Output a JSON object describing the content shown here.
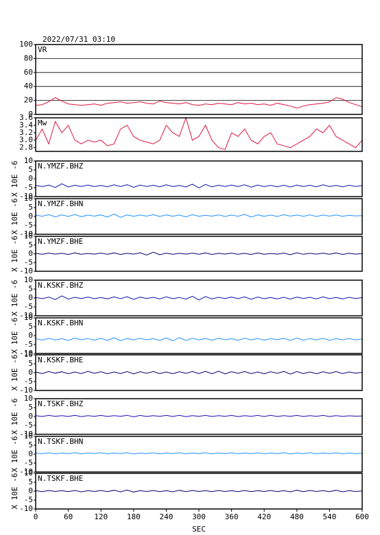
{
  "header": {
    "timestamp": "2022/07/31 03:10"
  },
  "chart_data": [
    {
      "type": "line",
      "label": "VR",
      "color": "#dc143c",
      "xlim": [
        0,
        600
      ],
      "ylim": [
        0,
        100
      ],
      "yticks": [
        0,
        20,
        40,
        60,
        80,
        100
      ],
      "grid": true,
      "x": [
        0,
        12,
        24,
        36,
        48,
        60,
        72,
        84,
        96,
        108,
        120,
        132,
        144,
        156,
        168,
        180,
        192,
        204,
        216,
        228,
        240,
        252,
        264,
        276,
        288,
        300,
        312,
        324,
        336,
        348,
        360,
        372,
        384,
        396,
        408,
        420,
        432,
        444,
        456,
        468,
        480,
        492,
        504,
        516,
        528,
        540,
        552,
        564,
        576,
        588,
        600
      ],
      "values": [
        13,
        14,
        18,
        24,
        19,
        15,
        14,
        13,
        14,
        15,
        13,
        16,
        17,
        18,
        16,
        17,
        18,
        16,
        15,
        19,
        17,
        16,
        15,
        17,
        14,
        13,
        15,
        14,
        16,
        15,
        14,
        17,
        15,
        16,
        14,
        15,
        13,
        16,
        14,
        12,
        9,
        12,
        14,
        15,
        16,
        18,
        24,
        22,
        17,
        14,
        11
      ]
    },
    {
      "type": "line",
      "label": "Mw",
      "color": "#dc143c",
      "xlim": [
        0,
        600
      ],
      "ylim": [
        2.7,
        3.6
      ],
      "yticks": [
        2.8,
        {
          "value": 3,
          "label": "3.0"
        },
        3.2,
        3.4,
        3.6
      ],
      "grid": false,
      "x": [
        0,
        12,
        24,
        36,
        48,
        60,
        72,
        84,
        96,
        108,
        120,
        132,
        144,
        156,
        168,
        180,
        192,
        204,
        216,
        228,
        240,
        252,
        264,
        276,
        288,
        300,
        312,
        324,
        336,
        348,
        360,
        372,
        384,
        396,
        408,
        420,
        432,
        444,
        456,
        468,
        480,
        492,
        504,
        516,
        528,
        540,
        552,
        564,
        576,
        588,
        600
      ],
      "values": [
        3.0,
        3.3,
        2.9,
        3.5,
        3.2,
        3.4,
        3.0,
        2.9,
        3.0,
        2.95,
        3.0,
        2.85,
        2.9,
        3.3,
        3.4,
        3.1,
        3.0,
        2.95,
        2.9,
        3.0,
        3.4,
        3.2,
        3.1,
        3.6,
        3.0,
        3.1,
        3.4,
        3.0,
        2.8,
        2.75,
        3.2,
        3.1,
        3.3,
        3.0,
        2.9,
        3.1,
        3.2,
        2.9,
        2.85,
        2.8,
        2.9,
        3.0,
        3.1,
        3.3,
        3.2,
        3.4,
        3.1,
        3.0,
        2.9,
        2.8,
        3.0
      ]
    },
    {
      "type": "line",
      "label": "N.YMZF.BHZ",
      "ylabel": "X 10E -6",
      "color": "#1010b0",
      "xlim": [
        0,
        600
      ],
      "ylim": [
        -10,
        10
      ],
      "yticks": [
        -10,
        -5,
        0,
        5,
        10
      ],
      "grid": false,
      "x": [
        0,
        12,
        24,
        36,
        48,
        60,
        72,
        84,
        96,
        108,
        120,
        132,
        144,
        156,
        168,
        180,
        192,
        204,
        216,
        228,
        240,
        252,
        264,
        276,
        288,
        300,
        312,
        324,
        336,
        348,
        360,
        372,
        384,
        396,
        408,
        420,
        432,
        444,
        456,
        468,
        480,
        492,
        504,
        516,
        528,
        540,
        552,
        564,
        576,
        588,
        600
      ],
      "values": [
        -3.7,
        -4.4,
        -3.5,
        -4.9,
        -2.8,
        -4.6,
        -3.6,
        -4.3,
        -3.5,
        -4.4,
        -3.7,
        -4.5,
        -3.4,
        -4.4,
        -3.3,
        -4.8,
        -3.5,
        -4.3,
        -3.6,
        -4.5,
        -3.4,
        -4.4,
        -3.7,
        -4.6,
        -3.0,
        -5.1,
        -3.2,
        -4.5,
        -3.6,
        -4.3,
        -3.5,
        -4.4,
        -3.4,
        -4.7,
        -3.5,
        -4.4,
        -3.7,
        -4.5,
        -3.6,
        -4.6,
        -3.5,
        -4.3,
        -3.6,
        -4.5,
        -3.4,
        -4.4,
        -3.7,
        -4.5,
        -3.6,
        -4.3,
        -3.8
      ]
    },
    {
      "type": "line",
      "label": "N.YMZF.BHN",
      "ylabel": "X 10E -6",
      "color": "#1e90ff",
      "xlim": [
        0,
        600
      ],
      "ylim": [
        -10,
        10
      ],
      "yticks": [
        -10,
        -5,
        0,
        5,
        10
      ],
      "grid": false,
      "x": [
        0,
        12,
        24,
        36,
        48,
        60,
        72,
        84,
        96,
        108,
        120,
        132,
        144,
        156,
        168,
        180,
        192,
        204,
        216,
        228,
        240,
        252,
        264,
        276,
        288,
        300,
        312,
        324,
        336,
        348,
        360,
        372,
        384,
        396,
        408,
        420,
        432,
        444,
        456,
        468,
        480,
        492,
        504,
        516,
        528,
        540,
        552,
        564,
        576,
        588,
        600
      ],
      "values": [
        0.8,
        0.1,
        1.0,
        -0.2,
        0.9,
        0.0,
        1.1,
        -0.1,
        0.8,
        0.2,
        0.9,
        -0.3,
        1.4,
        -0.5,
        0.9,
        0.1,
        0.8,
        0.2,
        1.0,
        0.0,
        0.9,
        0.1,
        0.8,
        -0.2,
        1.0,
        0.1,
        0.7,
        0.2,
        0.9,
        0.0,
        0.8,
        0.1,
        1.2,
        -0.3,
        0.9,
        0.1,
        0.8,
        0.0,
        1.0,
        0.2,
        0.8,
        0.1,
        0.9,
        0.0,
        0.8,
        0.2,
        0.9,
        0.1,
        0.7,
        0.3,
        0.5
      ]
    },
    {
      "type": "line",
      "label": "N.YMZF.BHE",
      "ylabel": "X 10E -6",
      "color": "#000070",
      "xlim": [
        0,
        600
      ],
      "ylim": [
        -10,
        10
      ],
      "yticks": [
        -10,
        -5,
        0,
        5,
        10
      ],
      "grid": false,
      "x": [
        0,
        12,
        24,
        36,
        48,
        60,
        72,
        84,
        96,
        108,
        120,
        132,
        144,
        156,
        168,
        180,
        192,
        204,
        216,
        228,
        240,
        252,
        264,
        276,
        288,
        300,
        312,
        324,
        336,
        348,
        360,
        372,
        384,
        396,
        408,
        420,
        432,
        444,
        456,
        468,
        480,
        492,
        504,
        516,
        528,
        540,
        552,
        564,
        576,
        588,
        600
      ],
      "values": [
        0.3,
        -0.3,
        0.4,
        -0.2,
        0.3,
        -0.4,
        0.5,
        -0.3,
        0.2,
        -0.2,
        0.4,
        -0.3,
        0.5,
        -0.4,
        0.3,
        -0.2,
        0.6,
        -0.7,
        0.9,
        -0.5,
        0.4,
        -0.3,
        0.3,
        -0.2,
        0.4,
        -0.3,
        0.5,
        -0.4,
        0.3,
        -0.2,
        0.4,
        -0.3,
        0.3,
        -0.4,
        0.5,
        -0.3,
        0.2,
        -0.2,
        0.4,
        -0.5,
        0.6,
        -0.3,
        0.3,
        -0.2,
        0.4,
        -0.3,
        0.5,
        -0.4,
        0.3,
        -0.2,
        0.1
      ]
    },
    {
      "type": "line",
      "label": "N.KSKF.BHZ",
      "ylabel": "X 10E -6",
      "color": "#1010b0",
      "xlim": [
        0,
        600
      ],
      "ylim": [
        -10,
        10
      ],
      "yticks": [
        -10,
        -5,
        0,
        5,
        10
      ],
      "grid": false,
      "x": [
        0,
        12,
        24,
        36,
        48,
        60,
        72,
        84,
        96,
        108,
        120,
        132,
        144,
        156,
        168,
        180,
        192,
        204,
        216,
        228,
        240,
        252,
        264,
        276,
        288,
        300,
        312,
        324,
        336,
        348,
        360,
        372,
        384,
        396,
        408,
        420,
        432,
        444,
        456,
        468,
        480,
        492,
        504,
        516,
        528,
        540,
        552,
        564,
        576,
        588,
        600
      ],
      "values": [
        0.3,
        -0.4,
        0.5,
        -0.9,
        1.2,
        -0.6,
        0.4,
        -0.3,
        0.5,
        -0.4,
        0.3,
        -0.5,
        0.6,
        -0.4,
        0.7,
        -0.8,
        0.5,
        -0.3,
        0.4,
        -0.5,
        0.6,
        -0.4,
        0.3,
        -0.6,
        1.0,
        -1.1,
        0.8,
        -0.5,
        0.4,
        -0.3,
        0.5,
        -0.4,
        0.6,
        -0.7,
        0.5,
        -0.4,
        0.3,
        -0.5,
        0.4,
        -0.6,
        0.5,
        -0.3,
        0.4,
        -0.5,
        0.6,
        -0.4,
        0.3,
        -0.5,
        0.4,
        -0.3,
        0.2
      ]
    },
    {
      "type": "line",
      "label": "N.KSKF.BHN",
      "ylabel": "X 10E -6",
      "color": "#1e90ff",
      "xlim": [
        0,
        600
      ],
      "ylim": [
        -10,
        10
      ],
      "yticks": [
        -10,
        -5,
        0,
        5,
        10
      ],
      "grid": false,
      "x": [
        0,
        12,
        24,
        36,
        48,
        60,
        72,
        84,
        96,
        108,
        120,
        132,
        144,
        156,
        168,
        180,
        192,
        204,
        216,
        228,
        240,
        252,
        264,
        276,
        288,
        300,
        312,
        324,
        336,
        348,
        360,
        372,
        384,
        396,
        408,
        420,
        432,
        444,
        456,
        468,
        480,
        492,
        504,
        516,
        528,
        540,
        552,
        564,
        576,
        588,
        600
      ],
      "values": [
        -1.6,
        -2.5,
        -1.5,
        -2.4,
        -1.7,
        -2.6,
        -1.4,
        -2.3,
        -1.6,
        -2.5,
        -1.5,
        -2.7,
        -1.2,
        -2.8,
        -1.6,
        -2.4,
        -1.5,
        -2.3,
        -1.7,
        -2.6,
        -1.3,
        -2.9,
        -1.1,
        -2.7,
        -1.5,
        -2.4,
        -1.6,
        -2.5,
        -1.5,
        -2.3,
        -1.7,
        -2.6,
        -1.4,
        -2.4,
        -1.6,
        -2.5,
        -1.7,
        -2.3,
        -1.5,
        -2.6,
        -1.4,
        -2.5,
        -1.6,
        -2.4,
        -1.5,
        -2.6,
        -1.7,
        -2.3,
        -1.6,
        -2.4,
        -1.8
      ]
    },
    {
      "type": "line",
      "label": "N.KSKF.BHE",
      "ylabel": "X 10E -6",
      "color": "#000070",
      "xlim": [
        0,
        600
      ],
      "ylim": [
        -10,
        10
      ],
      "yticks": [
        -10,
        -5,
        0,
        5,
        10
      ],
      "grid": false,
      "x": [
        0,
        12,
        24,
        36,
        48,
        60,
        72,
        84,
        96,
        108,
        120,
        132,
        144,
        156,
        168,
        180,
        192,
        204,
        216,
        228,
        240,
        252,
        264,
        276,
        288,
        300,
        312,
        324,
        336,
        348,
        360,
        372,
        384,
        396,
        408,
        420,
        432,
        444,
        456,
        468,
        480,
        492,
        504,
        516,
        528,
        540,
        552,
        564,
        576,
        588,
        600
      ],
      "values": [
        0.4,
        -0.5,
        0.6,
        -0.3,
        0.5,
        -0.6,
        0.4,
        -0.5,
        0.7,
        -0.4,
        0.5,
        -0.6,
        0.4,
        -0.5,
        0.6,
        -0.7,
        0.5,
        -0.4,
        0.6,
        -0.5,
        0.4,
        -0.6,
        0.5,
        -0.4,
        0.6,
        -0.5,
        0.7,
        -0.6,
        0.8,
        -0.7,
        0.5,
        -0.4,
        0.6,
        -0.5,
        0.4,
        -0.6,
        0.5,
        -0.4,
        0.7,
        -0.8,
        0.6,
        -0.5,
        0.4,
        -0.6,
        0.5,
        -0.4,
        0.6,
        -0.5,
        0.4,
        -0.3,
        0.2
      ]
    },
    {
      "type": "line",
      "label": "N.TSKF.BHZ",
      "ylabel": "X 10E -6",
      "color": "#1010b0",
      "xlim": [
        0,
        600
      ],
      "ylim": [
        -10,
        10
      ],
      "yticks": [
        -10,
        -5,
        0,
        5,
        10
      ],
      "grid": false,
      "x": [
        0,
        12,
        24,
        36,
        48,
        60,
        72,
        84,
        96,
        108,
        120,
        132,
        144,
        156,
        168,
        180,
        192,
        204,
        216,
        228,
        240,
        252,
        264,
        276,
        288,
        300,
        312,
        324,
        336,
        348,
        360,
        372,
        384,
        396,
        408,
        420,
        432,
        444,
        456,
        468,
        480,
        492,
        504,
        516,
        528,
        540,
        552,
        564,
        576,
        588,
        600
      ],
      "values": [
        0.5,
        0.0,
        0.6,
        0.1,
        0.5,
        0.0,
        0.7,
        -0.1,
        0.5,
        0.1,
        0.6,
        0.0,
        0.5,
        0.1,
        0.7,
        -0.2,
        0.6,
        0.0,
        0.5,
        0.1,
        0.6,
        0.0,
        0.7,
        -0.1,
        0.5,
        0.1,
        0.6,
        0.0,
        0.5,
        0.1,
        0.6,
        -0.1,
        0.5,
        0.1,
        0.6,
        0.0,
        0.7,
        0.0,
        0.5,
        0.1,
        0.6,
        0.0,
        0.5,
        0.1,
        0.6,
        0.0,
        0.5,
        0.1,
        0.4,
        0.2,
        0.3
      ]
    },
    {
      "type": "line",
      "label": "N.TSKF.BHN",
      "ylabel": "X 10E -6",
      "color": "#1e90ff",
      "xlim": [
        0,
        600
      ],
      "ylim": [
        -10,
        10
      ],
      "yticks": [
        -10,
        -5,
        0,
        5,
        10
      ],
      "grid": false,
      "x": [
        0,
        12,
        24,
        36,
        48,
        60,
        72,
        84,
        96,
        108,
        120,
        132,
        144,
        156,
        168,
        180,
        192,
        204,
        216,
        228,
        240,
        252,
        264,
        276,
        288,
        300,
        312,
        324,
        336,
        348,
        360,
        372,
        384,
        396,
        408,
        420,
        432,
        444,
        456,
        468,
        480,
        492,
        504,
        516,
        528,
        540,
        552,
        564,
        576,
        588,
        600
      ],
      "values": [
        0.7,
        0.3,
        0.8,
        0.2,
        0.7,
        0.3,
        0.8,
        0.2,
        0.7,
        0.4,
        0.8,
        0.2,
        0.7,
        0.3,
        0.9,
        0.1,
        0.7,
        0.3,
        0.8,
        0.2,
        0.7,
        0.3,
        0.8,
        0.2,
        0.7,
        0.3,
        0.8,
        0.2,
        0.7,
        0.3,
        0.8,
        0.2,
        0.7,
        0.3,
        0.8,
        0.2,
        0.7,
        0.3,
        0.9,
        0.1,
        0.7,
        0.3,
        0.8,
        0.2,
        0.7,
        0.3,
        0.8,
        0.2,
        0.7,
        0.3,
        0.5
      ]
    },
    {
      "type": "line",
      "label": "N.TSKF.BHE",
      "ylabel": "X 10E -6",
      "color": "#000070",
      "xlim": [
        0,
        600
      ],
      "ylim": [
        -10,
        10
      ],
      "yticks": [
        -10,
        -5,
        0,
        5,
        10
      ],
      "grid": false,
      "xticks": [
        0,
        60,
        120,
        180,
        240,
        300,
        360,
        420,
        480,
        540,
        600
      ],
      "xlabel": "SEC",
      "x": [
        0,
        12,
        24,
        36,
        48,
        60,
        72,
        84,
        96,
        108,
        120,
        132,
        144,
        156,
        168,
        180,
        192,
        204,
        216,
        228,
        240,
        252,
        264,
        276,
        288,
        300,
        312,
        324,
        336,
        348,
        360,
        372,
        384,
        396,
        408,
        420,
        432,
        444,
        456,
        468,
        480,
        492,
        504,
        516,
        528,
        540,
        552,
        564,
        576,
        588,
        600
      ],
      "values": [
        0.3,
        -0.3,
        0.4,
        -0.2,
        0.3,
        -0.3,
        0.4,
        -0.4,
        0.3,
        -0.2,
        0.4,
        -0.3,
        0.5,
        -0.4,
        0.6,
        -0.5,
        0.3,
        -0.2,
        0.4,
        -0.3,
        0.3,
        -0.4,
        0.5,
        -0.3,
        0.4,
        -0.2,
        0.3,
        -0.3,
        0.4,
        -0.2,
        0.3,
        -0.3,
        0.4,
        -0.3,
        0.3,
        -0.2,
        0.4,
        -0.3,
        0.3,
        -0.4,
        0.5,
        -0.3,
        0.4,
        -0.2,
        0.3,
        -0.3,
        0.5,
        -0.4,
        0.3,
        -0.2,
        0.1
      ]
    }
  ]
}
